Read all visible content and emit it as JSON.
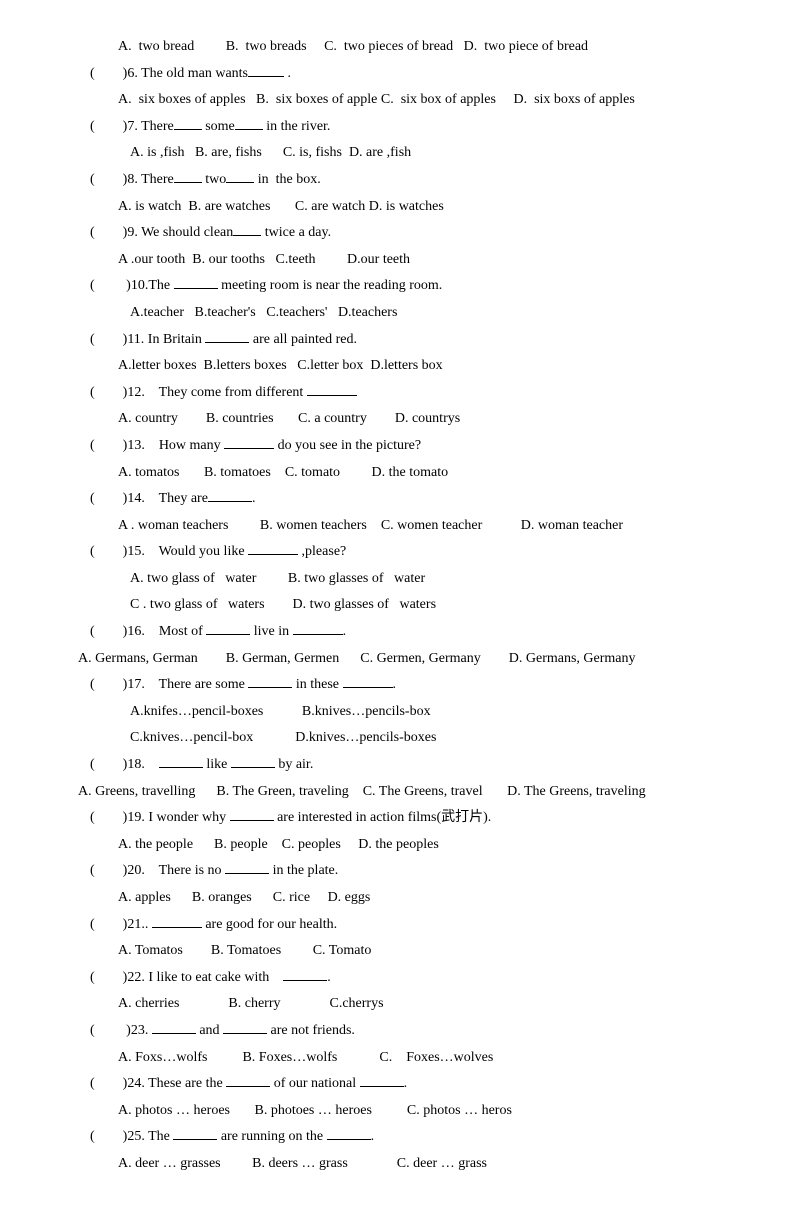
{
  "q5opts": "A.  two bread         B.  two breads     C.  two pieces of bread   D.  two piece of bread",
  "q6": "(        )6. The old man wants",
  "q6b": " .",
  "q6opts": "A.  six boxes of apples   B.  six boxes of apple C.  six box of apples     D.  six boxs of apples",
  "q7": "(        )7. There",
  "q7m": " some",
  "q7e": " in the river.",
  "q7opts": "A. is ,fish   B. are, fishs      C. is, fishs  D. are ,fish",
  "q8": "(        )8. There",
  "q8m": " two",
  "q8e": " in  the box.",
  "q8opts": "A. is watch  B. are watches       C. are watch D. is watches",
  "q9": "(        )9. We should clean",
  "q9e": " twice a day.",
  "q9opts": "A .our tooth  B. our tooths   C.teeth         D.our teeth",
  "q10": "(         )10.The ",
  "q10e": " meeting room is near the reading room.",
  "q10opts": "A.teacher   B.teacher's   C.teachers'   D.teachers",
  "q11": "(        )11. In Britain ",
  "q11e": " are all painted red.",
  "q11opts": "A.letter boxes  B.letters boxes   C.letter box  D.letters box",
  "q12": "(        )12.    They come from different ",
  "q12opts": "A. country        B. countries       C. a country        D. countrys",
  "q13": "(        )13.    How many ",
  "q13e": " do you see in the picture?",
  "q13opts": "A. tomatos       B. tomatoes    C. tomato         D. the tomato",
  "q14": "(        )14.    They are",
  "q14e": ".",
  "q14opts": "A . woman teachers         B. women teachers    C. women teacher           D. woman teacher",
  "q15": "(        )15.    Would you like ",
  "q15e": " ,please?",
  "q15opts1": "A. two glass of   water         B. two glasses of   water",
  "q15opts2": "C . two glass of   waters        D. two glasses of   waters",
  "q16": "(        )16.    Most of ",
  "q16m": " live in ",
  "q16e": ".",
  "q16opts": "A. Germans, German        B. German, Germen      C. Germen, Germany        D. Germans, Germany",
  "q17": "(        )17.    There are some ",
  "q17m": " in these ",
  "q17e": ".",
  "q17opts1": "A.knifes…pencil-boxes           B.knives…pencils-box",
  "q17opts2": "C.knives…pencil-box            D.knives…pencils-boxes",
  "q18": "(        )18.    ",
  "q18m": " like ",
  "q18e": " by air.",
  "q18opts": "A. Greens, travelling      B. The Green, traveling    C. The Greens, travel       D. The Greens, traveling",
  "q19": "(        )19. I wonder why ",
  "q19e": " are interested in action films(武打片).",
  "q19opts": "A. the people      B. people    C. peoples     D. the peoples",
  "q20": "(        )20.    There is no ",
  "q20e": " in the plate.",
  "q20opts": "A. apples      B. oranges      C. rice     D. eggs",
  "q21": "(        )21.. ",
  "q21e": " are good for our health.",
  "q21opts": "A. Tomatos        B. Tomatoes         C. Tomato",
  "q22": "(        )22. I like to eat cake with    ",
  "q22e": ".",
  "q22opts": "A. cherries              B. cherry              C.cherrys",
  "q23": "(         )23. ",
  "q23m": " and ",
  "q23e": " are not friends.",
  "q23opts": "A. Foxs…wolfs          B. Foxes…wolfs            C.    Foxes…wolves",
  "q24": "(        )24. These are the ",
  "q24m": " of our national ",
  "q24e": ".",
  "q24opts": "A. photos … heroes       B. photoes … heroes          C. photos … heros",
  "q25": "(        )25. The ",
  "q25m": " are running on the ",
  "q25e": ".",
  "q25opts": "A. deer … grasses         B. deers … grass              C. deer … grass"
}
